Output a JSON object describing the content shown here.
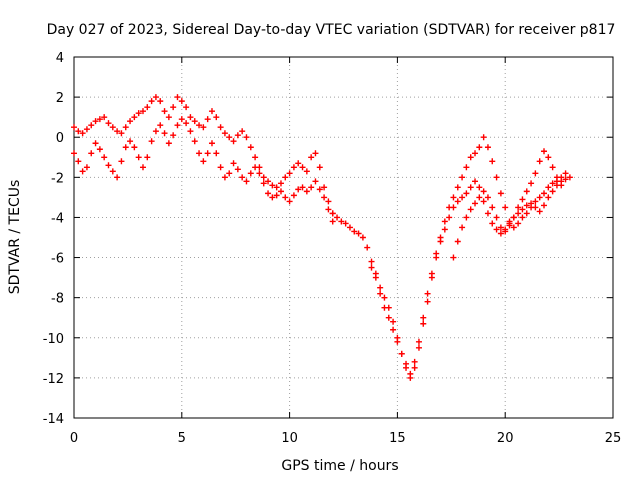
{
  "chart_data": {
    "type": "scatter",
    "title": "Day 027 of 2023, Sidereal Day-to-day VTEC variation (SDTVAR) for receiver p817",
    "xlabel": "GPS time / hours",
    "ylabel": "SDTVAR / TECUs",
    "xlim": [
      0,
      25
    ],
    "ylim": [
      -14,
      4
    ],
    "xticks": [
      0,
      5,
      10,
      15,
      20,
      25
    ],
    "yticks": [
      -14,
      -12,
      -10,
      -8,
      -6,
      -4,
      -2,
      0,
      2,
      4
    ],
    "grid": true,
    "marker": "plus",
    "color": "#ff0000",
    "series": [
      {
        "x": [
          0.0,
          0.2,
          0.4,
          0.6,
          0.8,
          1.0,
          1.2,
          1.4,
          1.6,
          1.8,
          2.0,
          2.2,
          2.4,
          2.6,
          2.8,
          3.0,
          3.2,
          3.4,
          3.6,
          3.8,
          4.0,
          4.2,
          4.4,
          4.6,
          4.8,
          5.0,
          5.2,
          5.4,
          5.6,
          5.8,
          6.0,
          6.2,
          6.4,
          6.6,
          6.8,
          7.0,
          7.2,
          7.4,
          7.6,
          7.8,
          8.0,
          8.2,
          8.4,
          8.6,
          8.8,
          9.0,
          9.2,
          9.4,
          9.6,
          9.8,
          10.0,
          10.2,
          10.4,
          10.6,
          10.8,
          11.0,
          11.2,
          11.4,
          11.6,
          11.8,
          12.0
        ],
        "y": [
          0.5,
          0.3,
          0.2,
          0.4,
          0.6,
          0.8,
          0.9,
          1.0,
          0.7,
          0.5,
          0.3,
          0.2,
          0.5,
          0.8,
          1.0,
          1.2,
          1.3,
          1.5,
          1.8,
          2.0,
          1.8,
          1.3,
          1.0,
          1.5,
          2.0,
          1.8,
          1.5,
          1.0,
          0.8,
          0.6,
          0.5,
          0.9,
          1.3,
          1.0,
          0.5,
          0.2,
          0.0,
          -0.2,
          0.1,
          0.3,
          0.0,
          -0.5,
          -1.0,
          -1.5,
          -2.0,
          -2.2,
          -2.4,
          -2.5,
          -2.3,
          -2.0,
          -1.8,
          -1.5,
          -1.3,
          -1.5,
          -1.7,
          -1.0,
          -0.8,
          -1.5,
          -2.5,
          -3.2,
          -3.8
        ]
      },
      {
        "x": [
          0.0,
          0.2,
          0.4,
          0.6,
          0.8,
          1.0,
          1.2,
          1.4,
          1.6,
          1.8,
          2.0,
          2.2,
          2.4,
          2.6,
          2.8,
          3.0,
          3.2,
          3.4,
          3.6,
          3.8,
          4.0,
          4.2,
          4.4,
          4.6,
          4.8,
          5.0,
          5.2,
          5.4,
          5.6,
          5.8,
          6.0,
          6.2,
          6.4,
          6.6,
          6.8,
          7.0,
          7.2,
          7.4,
          7.6,
          7.8,
          8.0,
          8.2,
          8.4,
          8.6,
          8.8,
          9.0,
          9.2,
          9.4,
          9.6,
          9.8,
          10.0,
          10.2,
          10.4,
          10.6,
          10.8,
          11.0,
          11.2,
          11.4,
          11.6,
          11.8,
          12.0
        ],
        "y": [
          -0.8,
          -1.2,
          -1.7,
          -1.5,
          -0.8,
          -0.3,
          -0.6,
          -1.0,
          -1.4,
          -1.7,
          -2.0,
          -1.2,
          -0.5,
          -0.2,
          -0.5,
          -1.0,
          -1.5,
          -1.0,
          -0.2,
          0.3,
          0.6,
          0.2,
          -0.3,
          0.1,
          0.6,
          0.9,
          0.7,
          0.3,
          -0.2,
          -0.8,
          -1.2,
          -0.8,
          -0.3,
          -0.8,
          -1.5,
          -2.0,
          -1.8,
          -1.3,
          -1.6,
          -2.0,
          -2.2,
          -1.8,
          -1.5,
          -1.8,
          -2.3,
          -2.8,
          -3.0,
          -2.9,
          -2.7,
          -3.0,
          -3.2,
          -2.9,
          -2.6,
          -2.5,
          -2.7,
          -2.5,
          -2.2,
          -2.6,
          -3.0,
          -3.6,
          -4.2
        ]
      },
      {
        "x": [
          12.0,
          12.2,
          12.4,
          12.6,
          12.8,
          13.0,
          13.2,
          13.4,
          13.6,
          13.8,
          14.0,
          14.2,
          14.4,
          14.6,
          14.8,
          15.0,
          15.2,
          15.4,
          15.6,
          15.8,
          16.0,
          16.2,
          16.4,
          16.6,
          16.8,
          17.0,
          17.2,
          17.4,
          17.6,
          17.8,
          18.0,
          18.2,
          18.4,
          18.6,
          18.8,
          19.0,
          19.2,
          19.4,
          19.6,
          19.8,
          20.0,
          20.2,
          20.4,
          20.6,
          20.8,
          21.0,
          21.2,
          21.4,
          21.6,
          21.8,
          22.0,
          22.2,
          22.4,
          22.6,
          22.8,
          23.0
        ],
        "y": [
          -3.8,
          -4.0,
          -4.2,
          -4.3,
          -4.5,
          -4.7,
          -4.8,
          -5.0,
          -5.5,
          -6.2,
          -6.8,
          -7.5,
          -8.0,
          -8.5,
          -9.2,
          -10.0,
          -10.8,
          -11.5,
          -12.0,
          -11.2,
          -10.2,
          -9.0,
          -7.8,
          -6.8,
          -5.8,
          -5.0,
          -4.2,
          -3.5,
          -3.0,
          -2.5,
          -2.0,
          -1.5,
          -1.0,
          -0.8,
          -0.5,
          0.0,
          -0.5,
          -1.2,
          -2.0,
          -2.8,
          -3.5,
          -4.2,
          -4.5,
          -4.3,
          -4.0,
          -3.8,
          -3.5,
          -3.2,
          -3.0,
          -2.8,
          -2.5,
          -2.3,
          -2.2,
          -2.0,
          -1.8,
          -2.0
        ]
      },
      {
        "x": [
          13.8,
          14.0,
          14.2,
          14.4,
          14.6,
          14.8,
          15.0,
          15.2,
          15.4,
          15.6,
          15.8,
          16.0,
          16.2,
          16.4,
          16.6,
          16.8,
          17.0,
          17.2,
          17.4,
          17.6,
          17.8,
          18.0,
          18.2,
          18.4,
          18.6,
          18.8,
          19.0,
          19.2,
          19.4,
          19.6,
          19.8,
          20.0,
          20.2,
          20.4,
          20.6,
          20.8,
          21.0,
          21.2,
          21.4,
          21.6,
          21.8,
          22.0,
          22.2,
          22.4,
          22.6,
          22.8
        ],
        "y": [
          -6.5,
          -7.0,
          -7.8,
          -8.5,
          -9.0,
          -9.6,
          -10.2,
          -10.8,
          -11.3,
          -11.8,
          -11.5,
          -10.5,
          -9.3,
          -8.2,
          -7.0,
          -6.0,
          -5.2,
          -4.6,
          -4.0,
          -3.5,
          -3.2,
          -3.0,
          -2.8,
          -2.5,
          -2.2,
          -2.5,
          -3.2,
          -3.8,
          -4.3,
          -4.6,
          -4.8,
          -4.6,
          -4.3,
          -4.0,
          -3.8,
          -3.6,
          -3.4,
          -3.3,
          -3.5,
          -3.7,
          -3.4,
          -3.0,
          -2.7,
          -2.4,
          -2.2,
          -2.1
        ]
      },
      {
        "x": [
          17.6,
          17.8,
          18.0,
          18.2,
          18.4,
          18.6,
          18.8,
          19.0,
          19.2,
          19.4,
          19.6,
          19.8,
          20.0,
          20.2,
          20.4,
          20.6,
          20.8,
          21.0,
          21.2,
          21.4,
          21.6,
          21.8,
          22.0,
          22.2,
          22.4,
          22.6
        ],
        "y": [
          -6.0,
          -5.2,
          -4.5,
          -4.0,
          -3.6,
          -3.3,
          -3.0,
          -2.7,
          -3.0,
          -3.5,
          -4.0,
          -4.5,
          -4.7,
          -4.4,
          -4.0,
          -3.5,
          -3.1,
          -2.7,
          -2.3,
          -1.8,
          -1.2,
          -0.7,
          -1.0,
          -1.5,
          -2.0,
          -2.4
        ]
      }
    ]
  }
}
